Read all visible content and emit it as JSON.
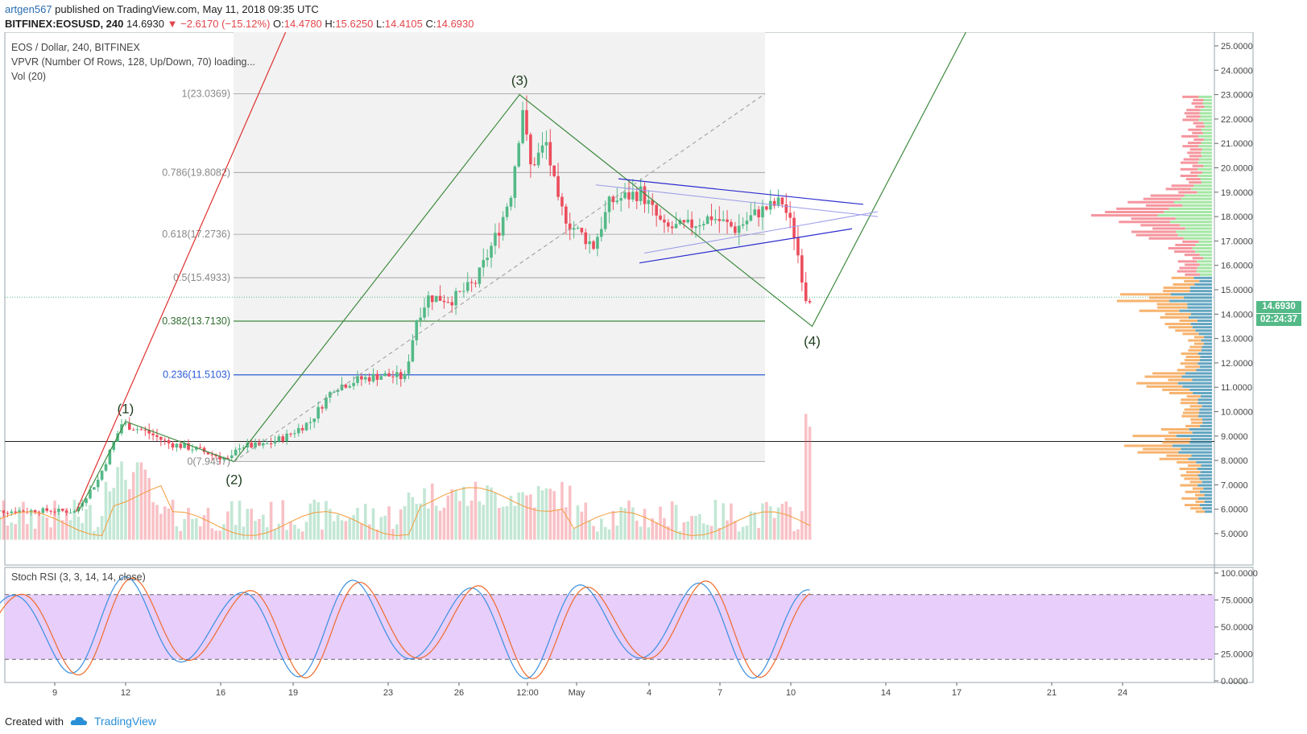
{
  "header": {
    "author": "artgen567",
    "published": " published on TradingView.com, May 11, 2018 09:35 UTC",
    "symbol": "BITFINEX:EOSUSD, 240",
    "last": "14.6930",
    "change": "▼ −2.6170 (−15.12%)",
    "o_label": "O:",
    "o_value": "14.4780",
    "h_label": "H:",
    "h_value": "15.6250",
    "l_label": "L:",
    "l_value": "14.4105",
    "c_label": "C:",
    "c_value": "14.6930"
  },
  "pane_info": {
    "title": "EOS / Dollar, 240, BITFINEX",
    "vpvr": "VPVR (Number Of Rows, 128, Up/Down, 70) loading...",
    "vol": "Vol (20)",
    "stoch": "Stoch RSI (3, 3, 14, 14, close)"
  },
  "footer": {
    "created": "Created with",
    "brand": "TradingView"
  },
  "price_badge": "14.6930",
  "timer_badge": "02:24:37",
  "colors": {
    "up": "#53b987",
    "down": "#eb4d5c",
    "wave": "#3f8a3f",
    "fib_blue": "#2a5bd7",
    "triangle": "#2c2ccf",
    "stoch_band": "#e4c9fb"
  },
  "chart_data": {
    "type": "candlestick",
    "price_axis": [
      "25.0000",
      "24.0000",
      "23.0000",
      "22.0000",
      "21.0000",
      "20.0000",
      "19.0000",
      "18.0000",
      "17.0000",
      "16.0000",
      "15.0000",
      "14.0000",
      "13.0000",
      "12.0000",
      "11.0000",
      "10.0000",
      "9.0000",
      "8.0000",
      "7.0000",
      "6.0000",
      "5.0000"
    ],
    "ylim": [
      4.7,
      25.5
    ],
    "x_labels": [
      "9",
      "12",
      "16",
      "19",
      "23",
      "26",
      "12:00",
      "May",
      "4",
      "7",
      "10",
      "14",
      "17",
      "21",
      "24"
    ],
    "fib_levels": [
      {
        "ratio": "1",
        "label": "1(23.0369)",
        "value": 23.0369
      },
      {
        "ratio": "0.786",
        "label": "0.786(19.8082)",
        "value": 19.8082
      },
      {
        "ratio": "0.618",
        "label": "0.618(17.2736)",
        "value": 17.2736
      },
      {
        "ratio": "0.5",
        "label": "0.5(15.4933)",
        "value": 15.4933
      },
      {
        "ratio": "0.382",
        "label": "0.382(13.7130)",
        "value": 13.713
      },
      {
        "ratio": "0.236",
        "label": "0.236(11.5103)",
        "value": 11.5103
      },
      {
        "ratio": "0",
        "label": "0(7.9497)",
        "value": 7.9497
      }
    ],
    "wave_labels": [
      "(1)",
      "(2)",
      "(3)",
      "(4)"
    ],
    "waves": [
      {
        "label": "(1)",
        "date_index": 12,
        "price": 9.6
      },
      {
        "label": "(2)",
        "date_index": 16.6,
        "price": 7.95
      },
      {
        "label": "(3)",
        "date_index": 28.7,
        "price": 23.0
      },
      {
        "label": "(4)",
        "date_index": 41.1,
        "price": 13.5
      }
    ],
    "horizontal_line": 8.78,
    "last_price": 14.693,
    "stoch_axis": [
      "100.0000",
      "75.0000",
      "50.0000",
      "25.0000",
      "0.0000"
    ],
    "stoch_ylim": [
      -4,
      104
    ],
    "stoch_band": [
      20,
      80
    ]
  }
}
